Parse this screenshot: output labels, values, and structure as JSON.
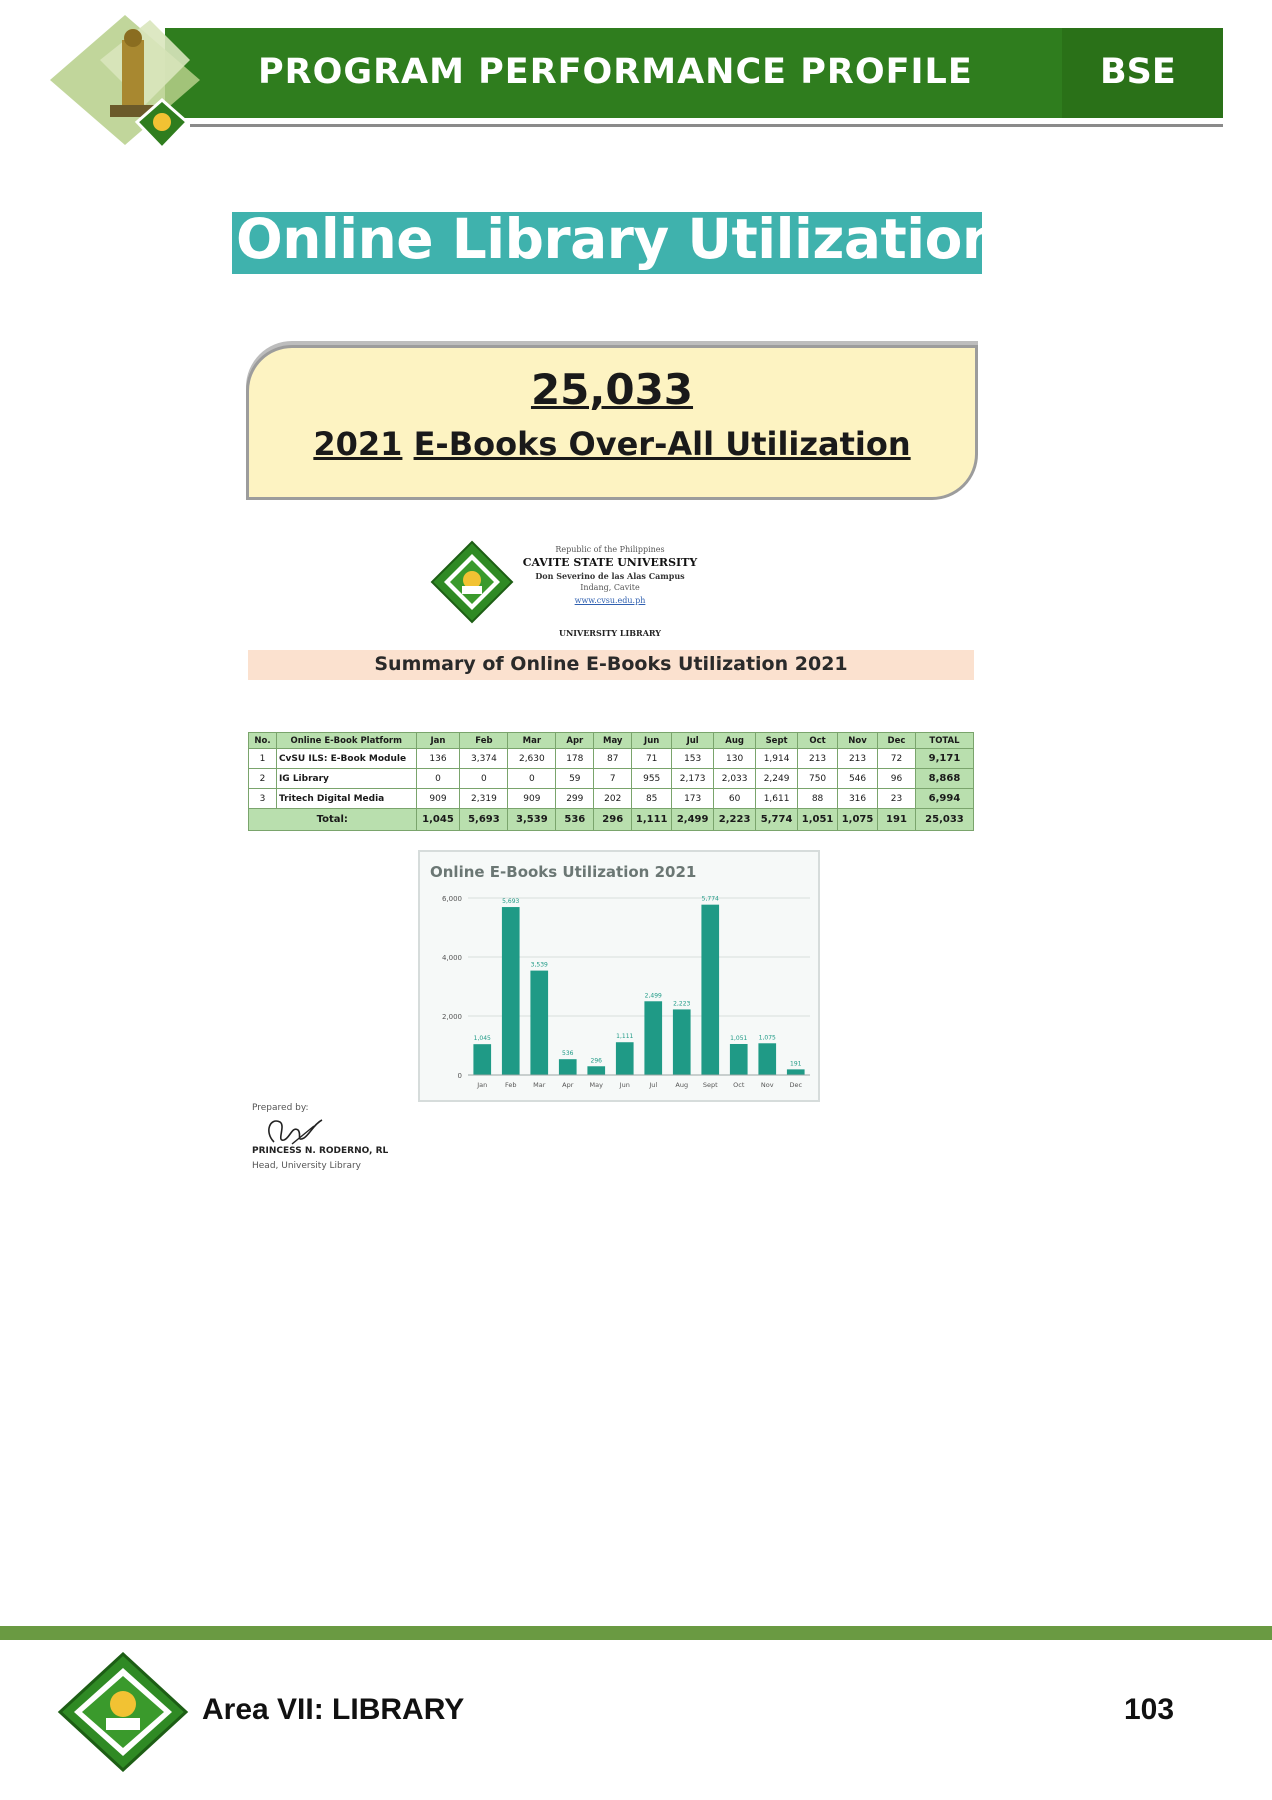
{
  "header": {
    "title": "PROGRAM PERFORMANCE PROFILE",
    "program_code": "BSE"
  },
  "banner": {
    "title": "Online Library Utilization"
  },
  "highlight": {
    "number": "25,033",
    "year": "2021",
    "label": "E-Books Over-All Utilization"
  },
  "university": {
    "republic": "Republic of the Philippines",
    "name": "CAVITE STATE UNIVERSITY",
    "campus": "Don Severino de las Alas Campus",
    "town": "Indang, Cavite",
    "website": "www.cvsu.edu.ph",
    "office": "UNIVERSITY LIBRARY"
  },
  "summary": {
    "title": "Summary of Online E-Books Utilization 2021"
  },
  "table": {
    "headers": [
      "No.",
      "Online E-Book Platform",
      "Jan",
      "Feb",
      "Mar",
      "Apr",
      "May",
      "Jun",
      "Jul",
      "Aug",
      "Sept",
      "Oct",
      "Nov",
      "Dec",
      "TOTAL"
    ],
    "rows": [
      [
        "1",
        "CvSU ILS: E-Book Module",
        "136",
        "3,374",
        "2,630",
        "178",
        "87",
        "71",
        "153",
        "130",
        "1,914",
        "213",
        "213",
        "72",
        "9,171"
      ],
      [
        "2",
        "IG Library",
        "0",
        "0",
        "0",
        "59",
        "7",
        "955",
        "2,173",
        "2,033",
        "2,249",
        "750",
        "546",
        "96",
        "8,868"
      ],
      [
        "3",
        "Tritech Digital Media",
        "909",
        "2,319",
        "909",
        "299",
        "202",
        "85",
        "173",
        "60",
        "1,611",
        "88",
        "316",
        "23",
        "6,994"
      ]
    ],
    "total_row": [
      "Total:",
      "1,045",
      "5,693",
      "3,539",
      "536",
      "296",
      "1,111",
      "2,499",
      "2,223",
      "5,774",
      "1,051",
      "1,075",
      "191",
      "25,033"
    ]
  },
  "chart_data": {
    "type": "bar",
    "title": "Online E-Books Utilization 2021",
    "categories": [
      "Jan",
      "Feb",
      "Mar",
      "Apr",
      "May",
      "Jun",
      "Jul",
      "Aug",
      "Sept",
      "Oct",
      "Nov",
      "Dec"
    ],
    "values": [
      1045,
      5693,
      3539,
      536,
      296,
      1111,
      2499,
      2223,
      5774,
      1051,
      1075,
      191
    ],
    "value_labels": [
      "1,045",
      "5,693",
      "3,539",
      "536",
      "296",
      "1,111",
      "2,499",
      "2,223",
      "5,774",
      "1,051",
      "1,075",
      "191"
    ],
    "yticks": [
      "0",
      "2,000",
      "4,000",
      "6,000"
    ],
    "ytick_values": [
      0,
      2000,
      4000,
      6000
    ],
    "ylim": [
      0,
      6000
    ],
    "bar_color": "#1f9a86",
    "grid": true
  },
  "prepared": {
    "label": "Prepared by:",
    "name": "PRINCESS N. RODERNO, RL",
    "role": "Head, University Library"
  },
  "footer": {
    "area": "Area VII: LIBRARY",
    "page": "103"
  }
}
